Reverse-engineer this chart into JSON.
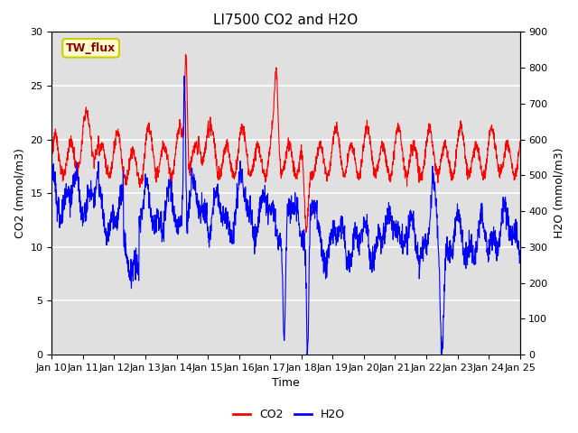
{
  "title": "LI7500 CO2 and H2O",
  "xlabel": "Time",
  "ylabel_left": "CO2 (mmol/m3)",
  "ylabel_right": "H2O (mmol/m3)",
  "annotation_text": "TW_flux",
  "annotation_color": "#8B0000",
  "annotation_bg": "#FFFFCC",
  "annotation_border": "#CCCC00",
  "x_tick_labels": [
    "Jan 10",
    "Jan 11",
    "Jan 12",
    "Jan 13",
    "Jan 14",
    "Jan 15",
    "Jan 16",
    "Jan 17",
    "Jan 18",
    "Jan 19",
    "Jan 20",
    "Jan 21",
    "Jan 22",
    "Jan 23",
    "Jan 24",
    "Jan 25"
  ],
  "co2_color": "red",
  "h2o_color": "blue",
  "ylim_left": [
    0,
    30
  ],
  "ylim_right": [
    0,
    900
  ],
  "plot_bg_color": "#E0E0E0",
  "grid_color": "white",
  "linewidth": 0.8,
  "title_fontsize": 11,
  "legend_fontsize": 9,
  "axis_fontsize": 9,
  "tick_fontsize": 8
}
